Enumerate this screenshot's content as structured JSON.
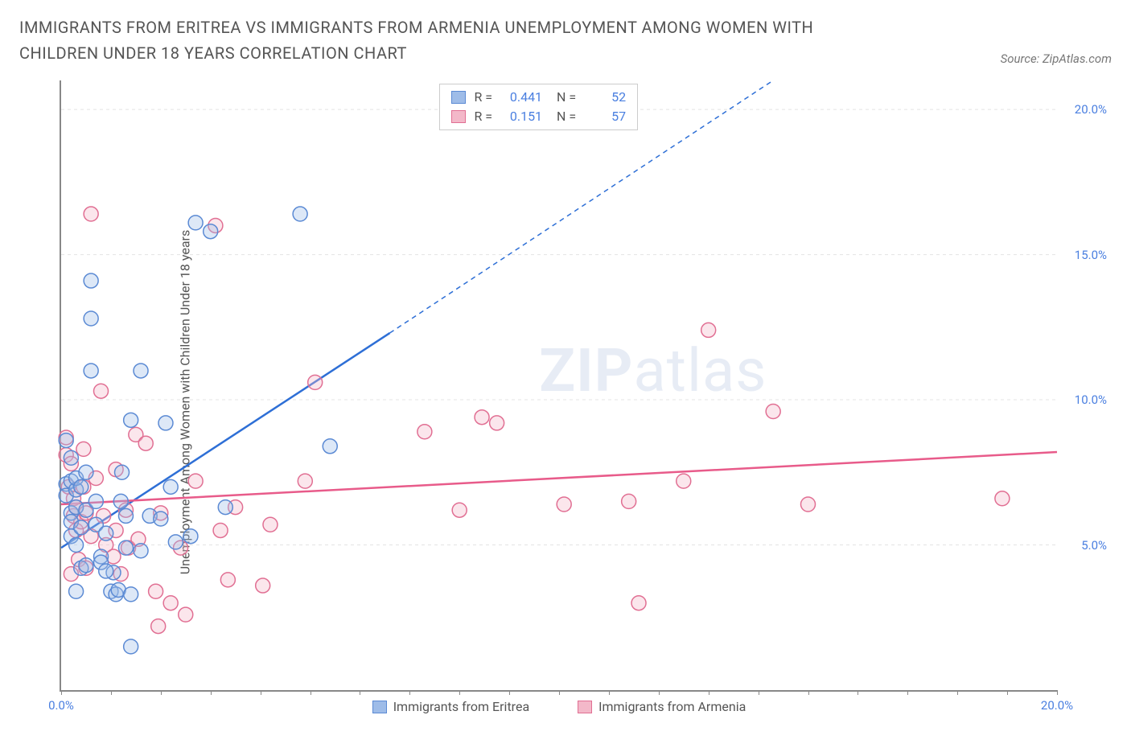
{
  "title": "IMMIGRANTS FROM ERITREA VS IMMIGRANTS FROM ARMENIA UNEMPLOYMENT AMONG WOMEN WITH CHILDREN UNDER 18 YEARS CORRELATION CHART",
  "source": "Source: ZipAtlas.com",
  "y_axis_label": "Unemployment Among Women with Children Under 18 years",
  "watermark_bold": "ZIP",
  "watermark_light": "atlas",
  "colors": {
    "series_a_fill": "#9ebce8",
    "series_a_stroke": "#5b8ad4",
    "series_b_fill": "#f3b8c9",
    "series_b_stroke": "#e16f93",
    "trend_a": "#2e6fd6",
    "trend_b": "#e85b8a",
    "tick_text": "#4a7fe0",
    "grid": "#e4e4e4",
    "axis": "#888888",
    "title_text": "#555555"
  },
  "axes": {
    "x_min": 0.0,
    "x_max": 20.0,
    "y_min": 0.0,
    "y_max": 21.0,
    "x_ticks": [
      0.0,
      5.0,
      10.0,
      15.0,
      20.0
    ],
    "x_tick_labels": [
      "0.0%",
      "",
      "",
      "",
      "20.0%"
    ],
    "x_minor_ticks": [
      1,
      2,
      3,
      4,
      6,
      7,
      8,
      9,
      11,
      12,
      13,
      14,
      16,
      17,
      18,
      19
    ],
    "y_ticks": [
      5.0,
      10.0,
      15.0,
      20.0
    ],
    "y_tick_labels": [
      "5.0%",
      "10.0%",
      "15.0%",
      "20.0%"
    ]
  },
  "stats": {
    "a": {
      "R": "0.441",
      "N": "52"
    },
    "b": {
      "R": "0.151",
      "N": "57"
    }
  },
  "legend": {
    "a": "Immigrants from Eritrea",
    "b": "Immigrants from Armenia"
  },
  "trend_lines": {
    "a_solid": {
      "x1": 0.0,
      "y1": 4.9,
      "x2": 6.6,
      "y2": 12.3
    },
    "a_dash": {
      "x1": 6.6,
      "y1": 12.3,
      "x2": 14.3,
      "y2": 21.0
    },
    "b_solid": {
      "x1": 0.0,
      "y1": 6.4,
      "x2": 20.0,
      "y2": 8.2
    }
  },
  "series_a_points": [
    [
      0.1,
      8.6
    ],
    [
      0.1,
      7.1
    ],
    [
      0.1,
      6.7
    ],
    [
      0.2,
      6.1
    ],
    [
      0.2,
      7.2
    ],
    [
      0.2,
      5.8
    ],
    [
      0.2,
      5.3
    ],
    [
      0.2,
      8.0
    ],
    [
      0.3,
      6.9
    ],
    [
      0.3,
      5.0
    ],
    [
      0.3,
      7.3
    ],
    [
      0.3,
      6.3
    ],
    [
      0.4,
      4.2
    ],
    [
      0.4,
      7.0
    ],
    [
      0.4,
      5.6
    ],
    [
      0.5,
      6.2
    ],
    [
      0.5,
      4.3
    ],
    [
      0.5,
      7.5
    ],
    [
      0.6,
      14.1
    ],
    [
      0.6,
      11.0
    ],
    [
      0.6,
      12.8
    ],
    [
      0.7,
      5.7
    ],
    [
      0.7,
      6.5
    ],
    [
      0.8,
      4.6
    ],
    [
      0.8,
      4.4
    ],
    [
      0.9,
      5.4
    ],
    [
      1.0,
      3.4
    ],
    [
      1.05,
      4.05
    ],
    [
      1.1,
      3.3
    ],
    [
      1.15,
      3.45
    ],
    [
      1.2,
      6.5
    ],
    [
      1.22,
      7.5
    ],
    [
      1.3,
      4.9
    ],
    [
      1.3,
      6.0
    ],
    [
      1.4,
      1.5
    ],
    [
      1.4,
      3.3
    ],
    [
      1.4,
      9.3
    ],
    [
      1.6,
      11.0
    ],
    [
      1.6,
      4.8
    ],
    [
      1.78,
      6.0
    ],
    [
      2.0,
      5.9
    ],
    [
      2.1,
      9.2
    ],
    [
      2.2,
      7.0
    ],
    [
      2.3,
      5.1
    ],
    [
      2.6,
      5.3
    ],
    [
      2.7,
      16.1
    ],
    [
      3.0,
      15.8
    ],
    [
      3.3,
      6.3
    ],
    [
      5.4,
      8.4
    ],
    [
      4.8,
      16.4
    ],
    [
      0.3,
      3.4
    ],
    [
      0.9,
      4.1
    ]
  ],
  "series_b_points": [
    [
      0.1,
      8.1
    ],
    [
      0.1,
      8.7
    ],
    [
      0.15,
      7.0
    ],
    [
      0.2,
      7.8
    ],
    [
      0.2,
      4.0
    ],
    [
      0.25,
      6.0
    ],
    [
      0.25,
      6.6
    ],
    [
      0.3,
      5.5
    ],
    [
      0.3,
      6.3
    ],
    [
      0.35,
      4.5
    ],
    [
      0.4,
      5.8
    ],
    [
      0.45,
      7.0
    ],
    [
      0.45,
      8.3
    ],
    [
      0.5,
      4.2
    ],
    [
      0.5,
      6.1
    ],
    [
      0.6,
      5.3
    ],
    [
      0.6,
      16.4
    ],
    [
      0.7,
      7.3
    ],
    [
      0.8,
      10.3
    ],
    [
      0.85,
      6.0
    ],
    [
      0.9,
      5.0
    ],
    [
      1.1,
      5.5
    ],
    [
      1.1,
      7.6
    ],
    [
      1.2,
      4.0
    ],
    [
      1.3,
      6.2
    ],
    [
      1.35,
      4.9
    ],
    [
      1.5,
      8.8
    ],
    [
      1.55,
      5.2
    ],
    [
      1.7,
      8.5
    ],
    [
      1.9,
      3.4
    ],
    [
      1.95,
      2.2
    ],
    [
      2.0,
      6.1
    ],
    [
      2.2,
      3.0
    ],
    [
      2.4,
      4.9
    ],
    [
      2.5,
      2.6
    ],
    [
      2.7,
      7.2
    ],
    [
      3.1,
      16.0
    ],
    [
      3.2,
      5.5
    ],
    [
      3.35,
      3.8
    ],
    [
      3.5,
      6.3
    ],
    [
      4.05,
      3.6
    ],
    [
      4.2,
      5.7
    ],
    [
      4.9,
      7.2
    ],
    [
      5.1,
      10.6
    ],
    [
      7.3,
      8.9
    ],
    [
      8.0,
      6.2
    ],
    [
      8.45,
      9.4
    ],
    [
      8.75,
      9.2
    ],
    [
      10.1,
      6.4
    ],
    [
      11.4,
      6.5
    ],
    [
      11.6,
      3.0
    ],
    [
      12.5,
      7.2
    ],
    [
      13.0,
      12.4
    ],
    [
      14.3,
      9.6
    ],
    [
      15.0,
      6.4
    ],
    [
      18.9,
      6.6
    ],
    [
      1.05,
      4.6
    ]
  ],
  "marker_radius": 9
}
